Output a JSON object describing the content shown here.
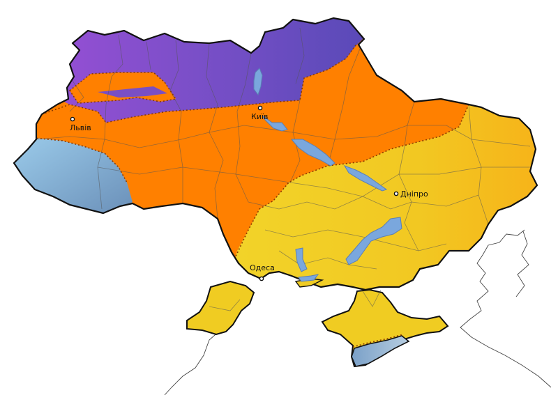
{
  "map": {
    "colors": {
      "zone_north": "#7a4fc4",
      "zone_central": "#ff8000",
      "zone_south": "#f0cc22",
      "zone_southeast": "#f7b41a",
      "zone_mountain": "#7fb0d6",
      "water": "#7aa7dd",
      "border": "#111111"
    },
    "cities": [
      {
        "name": "Львів"
      },
      {
        "name": "Київ"
      },
      {
        "name": "Дніпро"
      },
      {
        "name": "Одеса"
      }
    ]
  }
}
